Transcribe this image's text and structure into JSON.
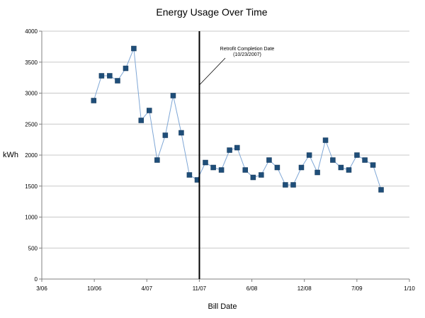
{
  "chart_data": {
    "type": "line",
    "title": "Energy Usage Over Time",
    "xlabel": "Bill Date",
    "ylabel": "kWh",
    "ylim": [
      0,
      4000
    ],
    "yticks": [
      "0",
      "500",
      "1000",
      "1500",
      "2000",
      "2500",
      "3000",
      "3500",
      "4000"
    ],
    "xlim": [
      "2006-03-01",
      "2010-01-01"
    ],
    "xticks": [
      "3/06",
      "10/06",
      "4/07",
      "11/07",
      "6/08",
      "12/08",
      "7/09",
      "1/10"
    ],
    "grid": true,
    "legend": "none",
    "series": [
      {
        "color": "#1F4E79",
        "line_color": "#7FA7D6",
        "marker": "square",
        "x": [
          "2006-09-15",
          "2006-10-15",
          "2006-11-15",
          "2006-12-15",
          "2007-01-15",
          "2007-02-15",
          "2007-03-15",
          "2007-04-15",
          "2007-05-15",
          "2007-06-15",
          "2007-07-15",
          "2007-08-15",
          "2007-09-15",
          "2007-10-15",
          "2007-11-15",
          "2007-12-15",
          "2008-01-15",
          "2008-02-15",
          "2008-03-15",
          "2008-04-15",
          "2008-05-15",
          "2008-06-15",
          "2008-07-15",
          "2008-08-15",
          "2008-09-15",
          "2008-10-15",
          "2008-11-15",
          "2008-12-15",
          "2009-01-15",
          "2009-02-15",
          "2009-03-15",
          "2009-04-15",
          "2009-05-15",
          "2009-06-15",
          "2009-07-15",
          "2009-08-15",
          "2009-09-15"
        ],
        "values": [
          2880,
          3280,
          3280,
          3200,
          3400,
          3720,
          2560,
          2720,
          1920,
          2320,
          2960,
          2360,
          1680,
          1600,
          1880,
          1800,
          1760,
          2080,
          2120,
          1760,
          1640,
          1680,
          1920,
          1800,
          1520,
          1520,
          1800,
          2000,
          1720,
          2240,
          1920,
          1800,
          1760,
          2000,
          1920,
          1840,
          1440
        ]
      }
    ],
    "annotations": [
      {
        "line1": "Retrofit Completion Date",
        "line2": "(10/23/2007)",
        "x": "2007-10-23"
      }
    ]
  }
}
